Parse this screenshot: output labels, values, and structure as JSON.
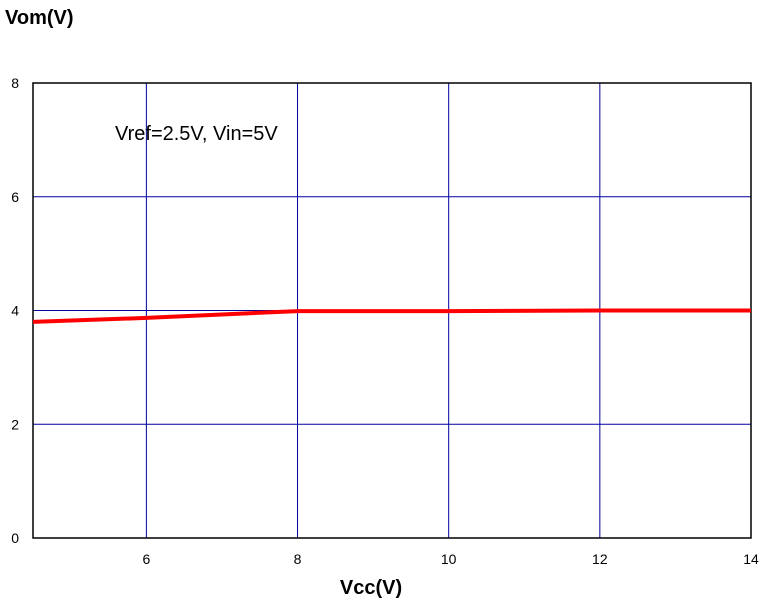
{
  "chart_data": {
    "type": "line",
    "title": "",
    "xlabel": "Vcc(V)",
    "ylabel": "Vom(V)",
    "xlim": [
      4.5,
      14
    ],
    "ylim": [
      0,
      8
    ],
    "x_ticks": [
      6,
      8,
      10,
      12,
      14
    ],
    "y_ticks": [
      0,
      2,
      4,
      6,
      8
    ],
    "grid": true,
    "annotation": "Vref=2.5V, Vin=5V",
    "series": [
      {
        "color": "#ff0000",
        "x": [
          4.5,
          6,
          8,
          10,
          12,
          14
        ],
        "y": [
          3.8,
          3.87,
          3.99,
          3.99,
          4.0,
          4.0
        ]
      }
    ]
  }
}
